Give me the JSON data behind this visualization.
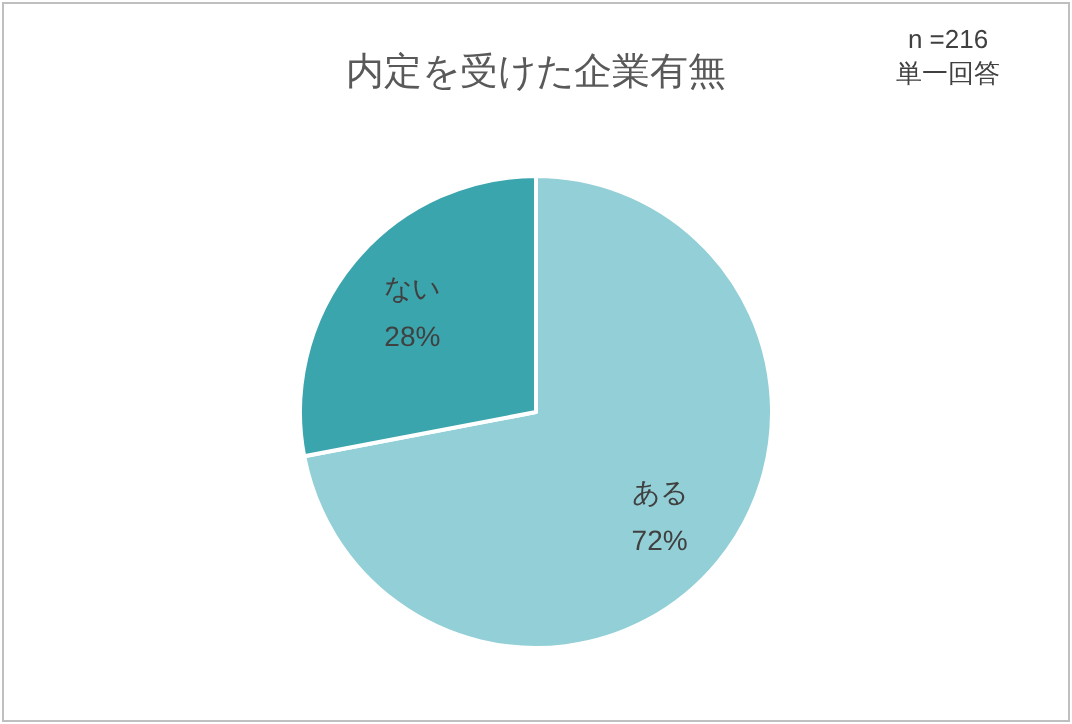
{
  "chart_data": {
    "type": "pie",
    "title": "内定を受けた企業有無",
    "categories": [
      "ある",
      "ない"
    ],
    "values": [
      72,
      28
    ],
    "colors": [
      "#92cfd6",
      "#3ba5ad"
    ],
    "value_labels": [
      "72%",
      "28%"
    ],
    "annotations": [
      "n =216",
      "単一回答"
    ]
  }
}
